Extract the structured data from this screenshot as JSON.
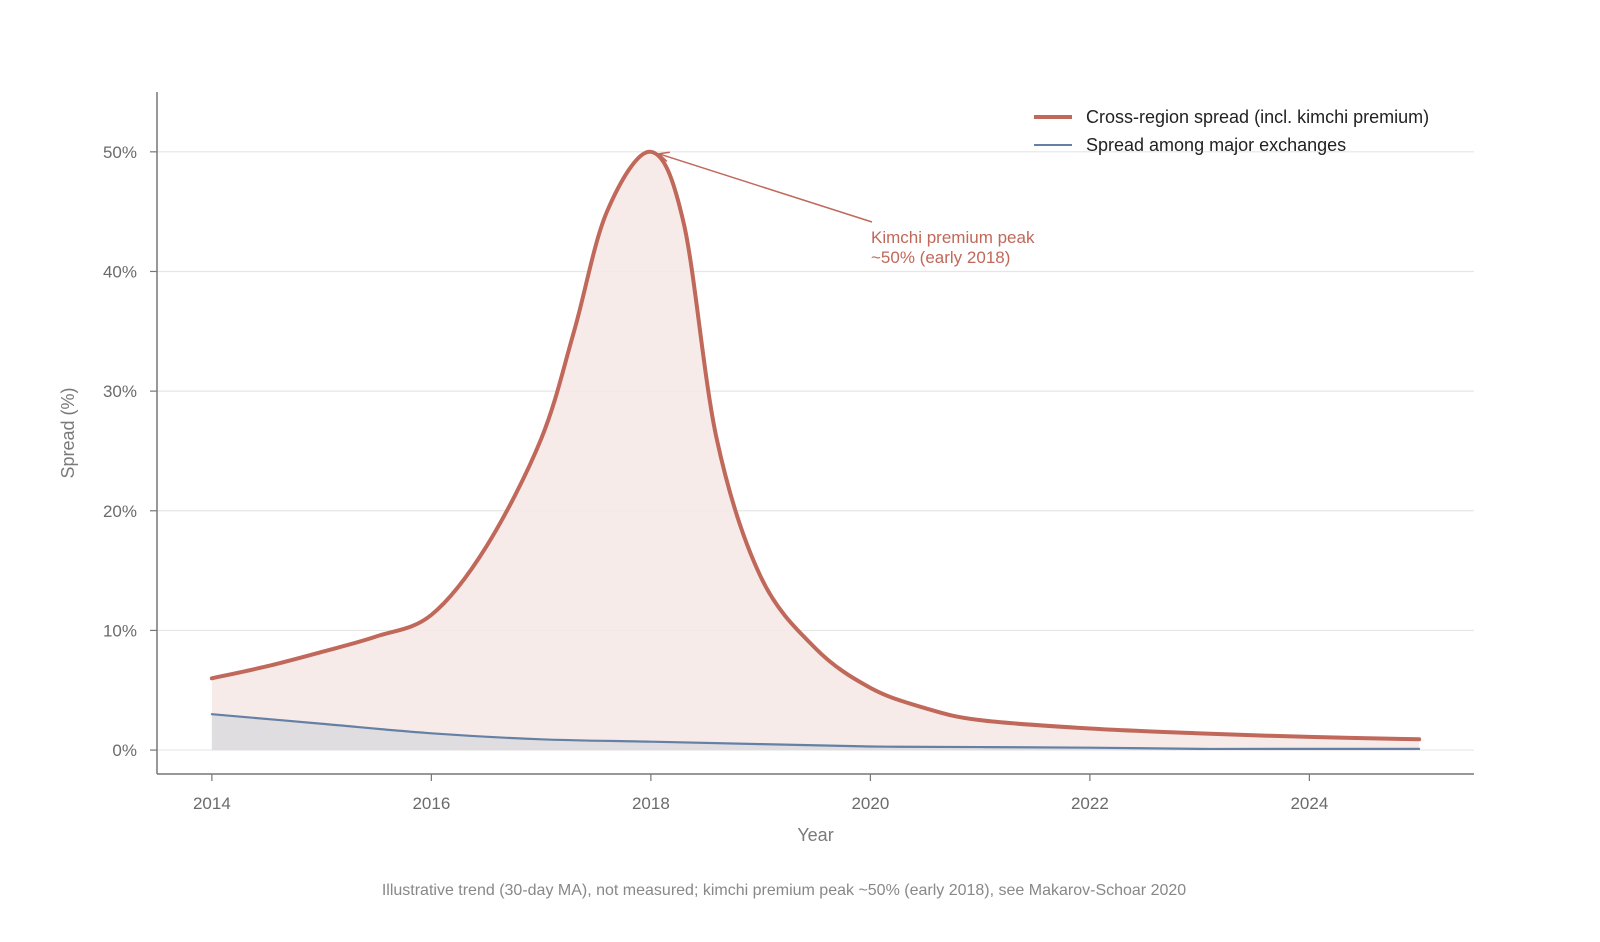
{
  "chart_data": {
    "type": "line",
    "xlabel": "Year",
    "ylabel": "Spread (%)",
    "xlim": [
      2013.5,
      2025.5
    ],
    "ylim": [
      -2,
      55
    ],
    "x_ticks": [
      2014,
      2016,
      2018,
      2020,
      2022,
      2024
    ],
    "y_ticks": [
      0,
      10,
      20,
      30,
      40,
      50
    ],
    "y_tick_suffix": "%",
    "grid": "horizontal",
    "legend_position": "top-right",
    "series": [
      {
        "name": "Cross-region spread (incl. kimchi premium)",
        "color": "#c0685a",
        "fill": "#f6e8e6",
        "x": [
          2014,
          2014.5,
          2015,
          2015.5,
          2016,
          2016.5,
          2017,
          2017.3,
          2017.6,
          2018,
          2018.3,
          2018.6,
          2019,
          2019.5,
          2020,
          2020.5,
          2021,
          2022,
          2023,
          2024,
          2025
        ],
        "values": [
          6,
          7,
          8.2,
          9.5,
          11.3,
          17,
          26,
          35,
          45,
          50,
          44,
          26,
          14.5,
          8.5,
          5.2,
          3.5,
          2.5,
          1.8,
          1.4,
          1.1,
          0.9
        ]
      },
      {
        "name": "Spread among major exchanges",
        "color": "#6480a4",
        "fill": "#dedcdf",
        "x": [
          2014,
          2015,
          2016,
          2017,
          2018,
          2019,
          2020,
          2021,
          2022,
          2023,
          2024,
          2025
        ],
        "values": [
          3,
          2.2,
          1.4,
          0.9,
          0.7,
          0.5,
          0.3,
          0.25,
          0.2,
          0.1,
          0.1,
          0.1
        ]
      }
    ],
    "annotations": [
      {
        "text": [
          "Kimchi premium peak",
          "~50% (early 2018)"
        ],
        "x": 2018,
        "y": 50,
        "color": "#c0685a"
      }
    ],
    "footnote": "Illustrative trend (30-day MA), not measured; kimchi premium peak ~50% (early 2018), see Makarov-Schoar 2020"
  }
}
